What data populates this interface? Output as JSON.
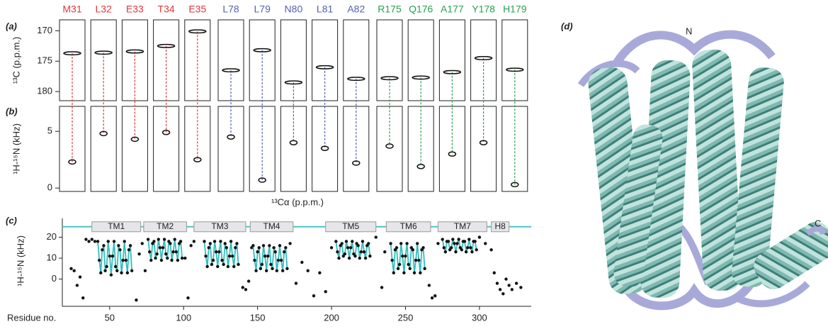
{
  "panels": {
    "a": "(a)",
    "b": "(b)",
    "c": "(c)",
    "d": "(d)"
  },
  "spectra": {
    "a_ylabel": "¹³C (p.p.m.)",
    "a_ylim": [
      168.2,
      181.5
    ],
    "a_yticks": [
      170,
      175,
      180
    ],
    "b_ylabel": "¹H-¹⁵N (kHz)",
    "b_ylim": [
      -0.3,
      7.2
    ],
    "b_yticks": [
      0,
      5
    ],
    "xlabel": "¹³Cα (p.p.m.)",
    "residues": [
      {
        "label": "M31",
        "color": "#e03838",
        "c_shift": 173.7,
        "coupling": 2.3
      },
      {
        "label": "L32",
        "color": "#e03838",
        "c_shift": 173.6,
        "coupling": 4.8
      },
      {
        "label": "E33",
        "color": "#e03838",
        "c_shift": 173.4,
        "coupling": 4.3
      },
      {
        "label": "T34",
        "color": "#e03838",
        "c_shift": 172.5,
        "coupling": 4.9
      },
      {
        "label": "E35",
        "color": "#e03838",
        "c_shift": 170.1,
        "coupling": 2.5
      },
      {
        "label": "L78",
        "color": "#5560b0",
        "c_shift": 176.5,
        "coupling": 4.5
      },
      {
        "label": "L79",
        "color": "#5560b0",
        "c_shift": 173.2,
        "coupling": 0.7
      },
      {
        "label": "N80",
        "color": "#5560b0",
        "c_shift": 178.5,
        "coupling": 4.0
      },
      {
        "label": "L81",
        "color": "#5560b0",
        "c_shift": 176.0,
        "coupling": 3.5
      },
      {
        "label": "A82",
        "color": "#5560b0",
        "c_shift": 177.9,
        "coupling": 2.2
      },
      {
        "label": "R175",
        "color": "#2aa050",
        "c_shift": 177.8,
        "coupling": 3.7
      },
      {
        "label": "Q176",
        "color": "#2aa050",
        "c_shift": 177.7,
        "coupling": 1.9
      },
      {
        "label": "A177",
        "color": "#2aa050",
        "c_shift": 176.8,
        "coupling": 3.0
      },
      {
        "label": "Y178",
        "color": "#2aa050",
        "c_shift": 174.5,
        "coupling": 4.0
      },
      {
        "label": "H179",
        "color": "#2aa050",
        "c_shift": 176.4,
        "coupling": 0.3
      }
    ]
  },
  "chart_data": {
    "type": "scatter",
    "xlabel": "Residue no.",
    "ylabel": "¹H-¹⁵N (kHz)",
    "xlim": [
      18,
      335
    ],
    "ylim": [
      -13,
      29
    ],
    "xticks": [
      50,
      100,
      150,
      200,
      250,
      300
    ],
    "yticks": [
      0,
      10,
      20
    ],
    "topology": {
      "value": 25,
      "color": "#4cc4c4"
    },
    "helices": [
      {
        "label": "TM1",
        "start": 38,
        "end": 71
      },
      {
        "label": "TM2",
        "start": 73,
        "end": 102
      },
      {
        "label": "TM3",
        "start": 107,
        "end": 142
      },
      {
        "label": "TM4",
        "start": 145,
        "end": 174
      },
      {
        "label": "TM5",
        "start": 196,
        "end": 230
      },
      {
        "label": "TM6",
        "start": 237,
        "end": 267
      },
      {
        "label": "TM7",
        "start": 272,
        "end": 305
      },
      {
        "label": "H8",
        "start": 308,
        "end": 320
      }
    ],
    "series": [
      {
        "color": "#111111",
        "x": [
          24,
          26,
          28,
          30,
          32,
          34,
          36,
          38,
          40,
          68,
          70,
          72,
          74,
          101,
          103,
          105,
          107,
          140,
          142,
          144,
          146,
          172,
          176,
          180,
          184,
          188,
          192,
          196,
          200,
          230,
          234,
          236,
          266,
          268,
          270,
          272,
          300,
          304,
          308,
          310,
          312,
          314,
          316,
          318,
          320,
          322,
          325,
          328
        ],
        "values": [
          5,
          4,
          -3,
          1,
          -9,
          19,
          18,
          19,
          18,
          -10,
          12,
          17,
          4,
          10,
          -9,
          16,
          18,
          -4,
          -5,
          -1,
          15,
          17,
          -2,
          8,
          4,
          -8,
          3,
          -6,
          15,
          20,
          -4,
          13,
          -3,
          -9,
          -8,
          17,
          20,
          17,
          14,
          3,
          -2,
          -5,
          -7,
          0,
          -3,
          -5,
          -2,
          -4
        ]
      },
      {
        "color": "#111111",
        "line_color": "#36bdbd",
        "x": [
          42,
          43,
          44,
          45,
          46,
          47,
          48,
          49,
          50,
          51,
          52,
          53,
          54,
          55,
          56,
          57,
          58,
          59,
          60,
          61,
          62,
          63,
          64,
          65
        ],
        "values": [
          18,
          9,
          3,
          14,
          16,
          4,
          6,
          18,
          11,
          2,
          11,
          18,
          6,
          4,
          16,
          14,
          3,
          9,
          18,
          9,
          3,
          14,
          16,
          4
        ]
      },
      {
        "color": "#111111",
        "line_color": "#36bdbd",
        "x": [
          76,
          77,
          78,
          79,
          80,
          81,
          82,
          83,
          84,
          85,
          86,
          87,
          88,
          89,
          90,
          91,
          92,
          93,
          94,
          95,
          96,
          97,
          98,
          99
        ],
        "values": [
          19,
          13,
          9,
          17,
          18,
          10,
          12,
          19,
          15,
          9,
          15,
          19,
          12,
          10,
          18,
          17,
          9,
          13,
          19,
          13,
          9,
          17,
          18,
          10
        ]
      },
      {
        "color": "#111111",
        "line_color": "#36bdbd",
        "x": [
          114,
          115,
          116,
          117,
          118,
          119,
          120,
          121,
          122,
          123,
          124,
          125,
          126,
          127,
          128,
          129,
          130,
          131,
          132,
          133,
          134,
          135,
          136,
          137
        ],
        "values": [
          18,
          11,
          6,
          15,
          17,
          7,
          9,
          18,
          13,
          6,
          13,
          18,
          9,
          7,
          17,
          15,
          6,
          11,
          18,
          11,
          6,
          15,
          17,
          7
        ]
      },
      {
        "color": "#111111",
        "line_color": "#36bdbd",
        "x": [
          147,
          148,
          149,
          150,
          151,
          152,
          153,
          154,
          155,
          156,
          157,
          158,
          159,
          160,
          161,
          162,
          163,
          164,
          165,
          166,
          167,
          168,
          169,
          170
        ],
        "values": [
          16,
          9,
          4,
          13,
          15,
          5,
          7,
          16,
          11,
          4,
          11,
          16,
          7,
          5,
          15,
          13,
          4,
          9,
          16,
          9,
          4,
          13,
          15,
          5
        ]
      },
      {
        "color": "#111111",
        "line_color": "#36bdbd",
        "x": [
          203,
          204,
          205,
          206,
          207,
          208,
          209,
          210,
          211,
          212,
          213,
          214,
          215,
          216,
          217,
          218,
          219,
          220,
          221,
          222,
          223,
          224,
          225,
          226
        ],
        "values": [
          18,
          13,
          10,
          16,
          17,
          11,
          12,
          18,
          15,
          10,
          15,
          18,
          12,
          11,
          17,
          16,
          10,
          13,
          18,
          13,
          10,
          16,
          17,
          11
        ]
      },
      {
        "color": "#111111",
        "line_color": "#36bdbd",
        "x": [
          240,
          241,
          242,
          243,
          244,
          245,
          246,
          247,
          248,
          249,
          250,
          251,
          252,
          253,
          254,
          255,
          256,
          257,
          258,
          259,
          260,
          261,
          262,
          263
        ],
        "values": [
          17,
          9,
          3,
          14,
          15,
          5,
          7,
          17,
          11,
          3,
          11,
          17,
          7,
          5,
          15,
          14,
          3,
          9,
          17,
          9,
          3,
          14,
          15,
          5
        ]
      },
      {
        "color": "#111111",
        "line_color": "#36bdbd",
        "x": [
          275,
          276,
          277,
          278,
          279,
          280,
          281,
          282,
          283,
          284,
          285,
          286,
          287,
          288,
          289,
          290,
          291,
          292,
          293,
          294,
          295,
          296,
          297,
          298
        ],
        "values": [
          19,
          15,
          13,
          18,
          18,
          14,
          15,
          19,
          17,
          13,
          17,
          19,
          15,
          14,
          18,
          18,
          13,
          15,
          19,
          15,
          13,
          18,
          18,
          14
        ]
      }
    ]
  },
  "structure": {
    "n_label": "N",
    "c_label": "C"
  }
}
